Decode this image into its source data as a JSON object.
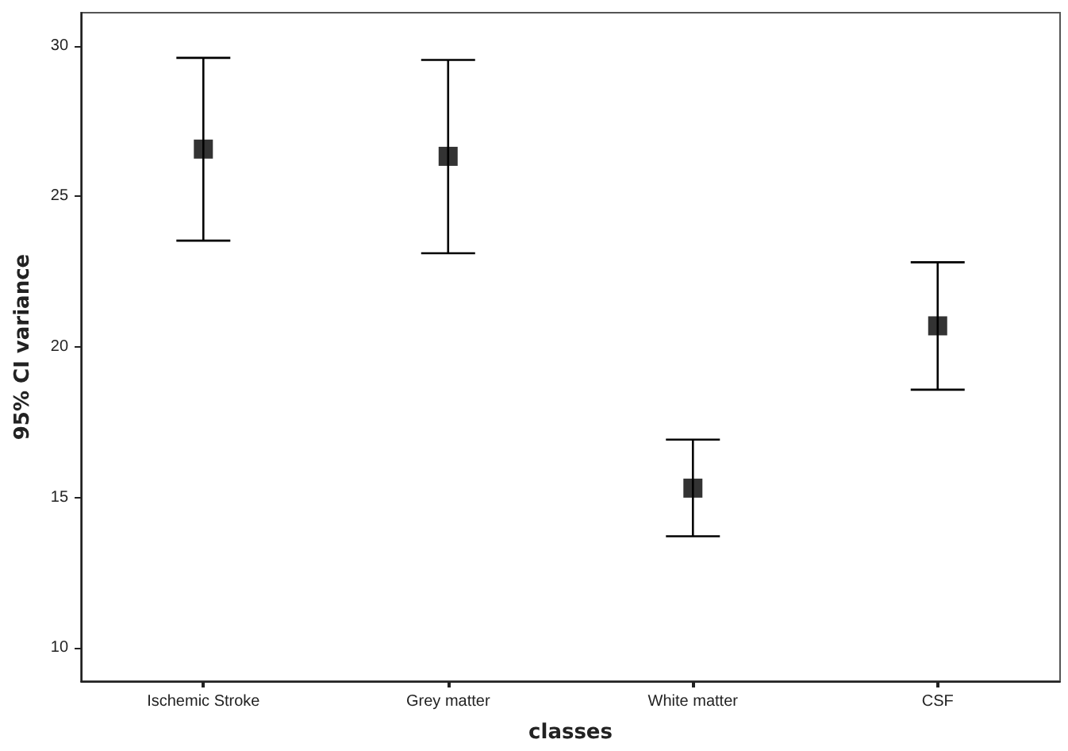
{
  "chart_data": {
    "type": "scatter",
    "xlabel": "classes",
    "ylabel": "95% CI variance",
    "categories": [
      "Ischemic Stroke",
      "Grey matter",
      "White matter",
      "CSF"
    ],
    "values": [
      26.57,
      26.33,
      15.31,
      20.7
    ],
    "errors": [
      [
        23.53,
        29.6
      ],
      [
        23.11,
        29.53
      ],
      [
        13.71,
        16.92
      ],
      [
        18.58,
        22.81
      ]
    ],
    "color": "#000000",
    "marker": "square",
    "grid": false,
    "ylim": [
      8.9,
      31.1
    ],
    "yticks": [
      10,
      15,
      20,
      25,
      30
    ]
  }
}
